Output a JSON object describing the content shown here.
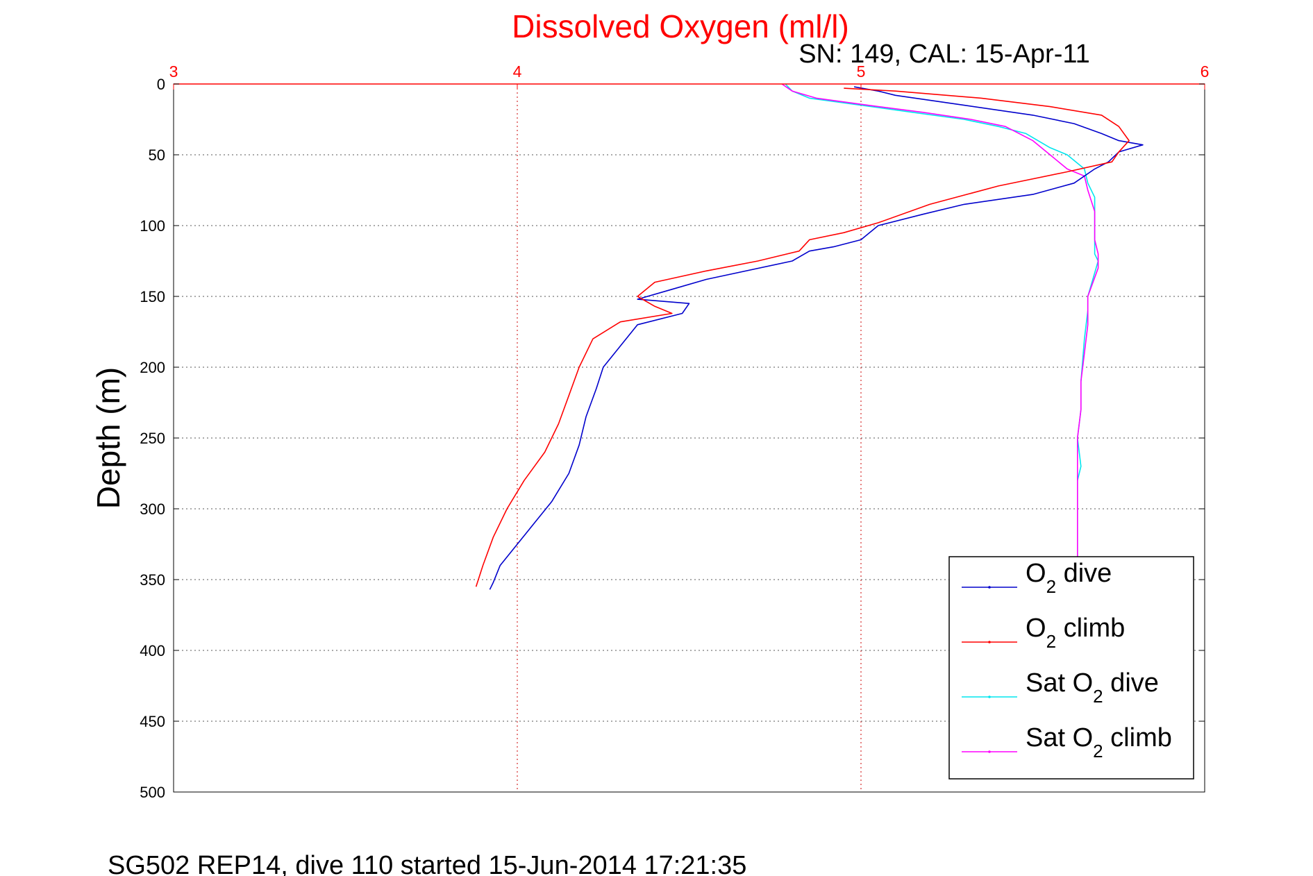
{
  "window": {
    "footer": "SG502 REP14, dive 110 started 15-Jun-2014 17:21:35"
  },
  "chart_data": {
    "type": "line",
    "title": "Dissolved Oxygen (ml/l)",
    "subtitle": "SN: 149, CAL: 15-Apr-11",
    "xlabel": "",
    "ylabel": "Depth (m)",
    "xlim": [
      3,
      6
    ],
    "ylim": [
      0,
      500
    ],
    "y_reversed": true,
    "x_axis_position": "top",
    "x_ticks": [
      "3",
      "4",
      "5",
      "6"
    ],
    "y_ticks": [
      "0",
      "50",
      "100",
      "150",
      "200",
      "250",
      "300",
      "350",
      "400",
      "450",
      "500"
    ],
    "grid": true,
    "legend_position": "bottom-right",
    "colors": {
      "title": "#ff0000",
      "x_axis": "#ff0000",
      "grid_x": "#cc0000",
      "grid_y": "#555555"
    },
    "series": [
      {
        "key": "o2_dive",
        "legend": {
          "pre": "O",
          "sub": "2",
          "post": " dive"
        },
        "color": "#0000cc",
        "x": [
          4.98,
          5.05,
          5.1,
          5.3,
          5.5,
          5.62,
          5.7,
          5.75,
          5.82,
          5.75,
          5.72,
          5.68,
          5.62,
          5.5,
          5.3,
          5.18,
          5.05,
          5.0,
          4.92,
          4.85,
          4.8,
          4.55,
          4.45,
          4.35,
          4.5,
          4.48,
          4.35,
          4.3,
          4.25,
          4.23,
          4.2,
          4.18,
          4.15,
          4.1,
          4.05,
          4.0,
          3.95,
          3.93,
          3.92
        ],
        "y": [
          2,
          5,
          8,
          15,
          22,
          28,
          35,
          40,
          43,
          48,
          55,
          60,
          70,
          78,
          85,
          92,
          100,
          110,
          115,
          118,
          125,
          138,
          145,
          152,
          155,
          162,
          170,
          185,
          200,
          215,
          235,
          255,
          275,
          295,
          310,
          325,
          340,
          352,
          357
        ]
      },
      {
        "key": "o2_climb",
        "legend": {
          "pre": "O",
          "sub": "2",
          "post": " climb"
        },
        "color": "#ff0000",
        "x": [
          4.95,
          5.1,
          5.35,
          5.55,
          5.7,
          5.75,
          5.78,
          5.75,
          5.73,
          5.6,
          5.4,
          5.2,
          5.05,
          4.95,
          4.85,
          4.82,
          4.7,
          4.55,
          4.4,
          4.35,
          4.4,
          4.45,
          4.3,
          4.22,
          4.18,
          4.15,
          4.12,
          4.08,
          4.02,
          3.97,
          3.93,
          3.9,
          3.88
        ],
        "y": [
          3,
          5,
          10,
          16,
          22,
          30,
          40,
          48,
          55,
          62,
          72,
          85,
          98,
          105,
          110,
          118,
          125,
          132,
          140,
          150,
          157,
          162,
          168,
          180,
          200,
          220,
          240,
          260,
          280,
          300,
          320,
          340,
          355
        ]
      },
      {
        "key": "sat_dive",
        "legend": {
          "pre": "Sat O",
          "sub": "2",
          "post": " dive"
        },
        "color": "#00e5ee",
        "x": [
          4.78,
          4.8,
          4.85,
          5.0,
          5.15,
          5.3,
          5.4,
          5.48,
          5.55,
          5.6,
          5.65,
          5.66,
          5.68,
          5.68,
          5.68,
          5.69,
          5.66,
          5.66,
          5.65,
          5.64,
          5.64,
          5.63,
          5.64,
          5.63,
          5.63,
          5.63
        ],
        "y": [
          0,
          5,
          10,
          15,
          20,
          25,
          30,
          35,
          45,
          50,
          60,
          70,
          80,
          100,
          120,
          125,
          150,
          160,
          180,
          210,
          230,
          250,
          270,
          280,
          300,
          340
        ]
      },
      {
        "key": "sat_climb",
        "legend": {
          "pre": "Sat O",
          "sub": "2",
          "post": " climb"
        },
        "color": "#ff00ff",
        "x": [
          4.77,
          4.8,
          4.87,
          5.02,
          5.18,
          5.32,
          5.42,
          5.5,
          5.55,
          5.6,
          5.65,
          5.66,
          5.68,
          5.68,
          5.69,
          5.69,
          5.66,
          5.66,
          5.65,
          5.64,
          5.64,
          5.63,
          5.63,
          5.63,
          5.63
        ],
        "y": [
          0,
          5,
          10,
          15,
          20,
          25,
          30,
          40,
          50,
          60,
          65,
          75,
          90,
          110,
          120,
          130,
          150,
          170,
          190,
          210,
          230,
          250,
          270,
          300,
          340
        ]
      }
    ]
  }
}
